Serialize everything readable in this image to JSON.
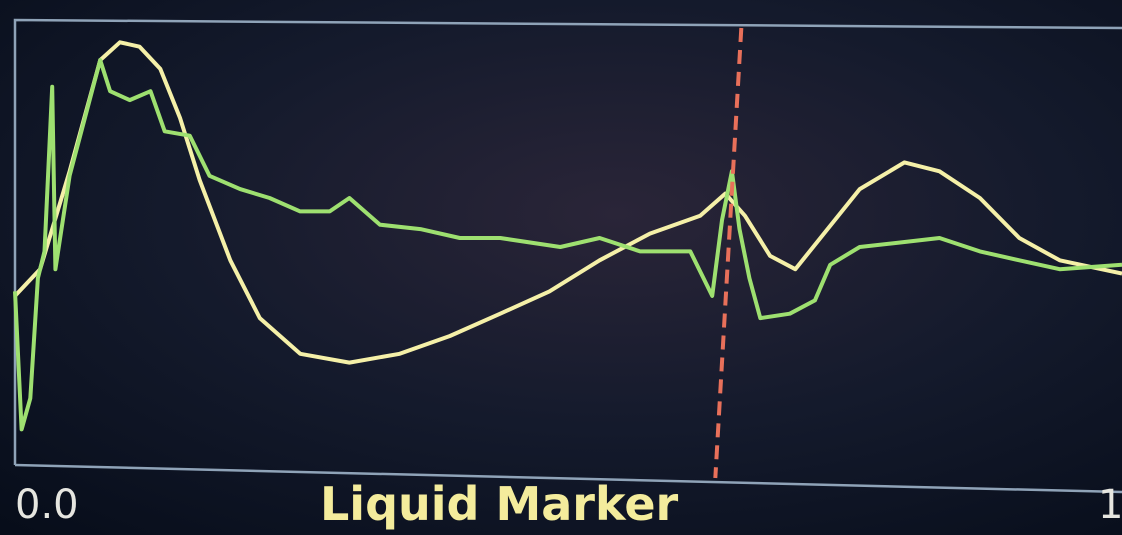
{
  "chart_data": {
    "type": "line",
    "x_label": "Liquid Marker",
    "xlim": [
      0,
      1.013
    ],
    "ylim": [
      0,
      100
    ],
    "xticks": [
      {
        "value": 0,
        "label": "0.0"
      },
      {
        "value": 1,
        "label": "1"
      }
    ],
    "marker": {
      "x": 0.65,
      "color": "#e8705a"
    },
    "series": [
      {
        "color": "#f5f0a8",
        "x": [
          0,
          0.023,
          0.05,
          0.078,
          0.096,
          0.114,
          0.133,
          0.151,
          0.169,
          0.197,
          0.224,
          0.261,
          0.306,
          0.352,
          0.398,
          0.444,
          0.489,
          0.535,
          0.581,
          0.627,
          0.65,
          0.668,
          0.691,
          0.714,
          0.737,
          0.773,
          0.814,
          0.846,
          0.883,
          0.919,
          0.956,
          1.013
        ],
        "values": [
          38,
          44,
          66,
          91,
          95,
          94,
          89,
          78,
          64,
          46,
          33,
          25,
          23,
          25,
          29,
          34,
          39,
          46,
          52,
          56,
          61,
          56,
          47,
          44,
          51,
          62,
          68,
          66,
          60,
          51,
          46,
          43
        ]
      },
      {
        "color": "#9ee070",
        "x": [
          0,
          0.006,
          0.014,
          0.021,
          0.027,
          0.034,
          0.037,
          0.05,
          0.078,
          0.087,
          0.105,
          0.124,
          0.137,
          0.16,
          0.178,
          0.206,
          0.233,
          0.261,
          0.288,
          0.306,
          0.334,
          0.371,
          0.407,
          0.444,
          0.499,
          0.535,
          0.572,
          0.618,
          0.638,
          0.647,
          0.656,
          0.663,
          0.672,
          0.682,
          0.709,
          0.732,
          0.746,
          0.773,
          0.81,
          0.846,
          0.883,
          0.919,
          0.956,
          1.013
        ],
        "values": [
          39,
          8,
          15,
          42,
          48,
          85,
          44,
          65,
          91,
          84,
          82,
          84,
          75,
          74,
          65,
          62,
          60,
          57,
          57,
          60,
          54,
          53,
          51,
          51,
          49,
          51,
          48,
          48,
          38,
          55,
          66,
          53,
          42,
          33,
          34,
          37,
          45,
          49,
          50,
          51,
          48,
          46,
          44,
          45
        ]
      }
    ]
  }
}
